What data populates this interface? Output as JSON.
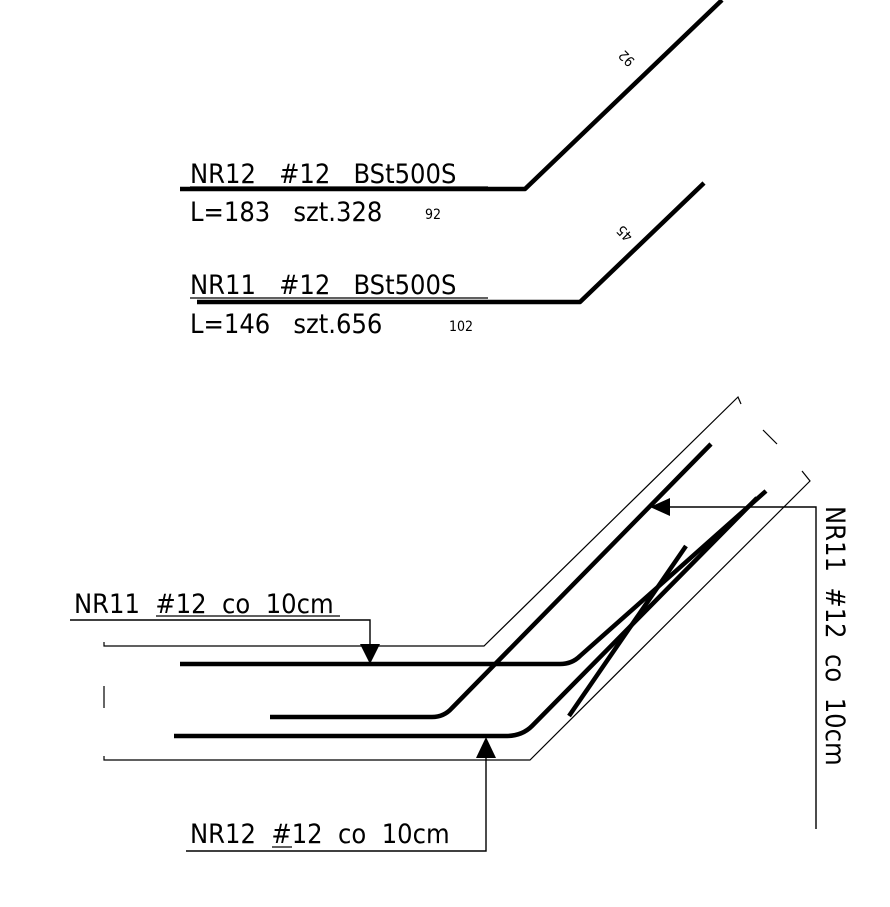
{
  "schedule": {
    "nr12": {
      "mark": "NR12   #12   BSt500S",
      "length_qty": "L=183   szt.328",
      "leg_horizontal": "92",
      "leg_diagonal": "92"
    },
    "nr11": {
      "mark": "NR11   #12   BSt500S",
      "length_qty": "L=146   szt.656",
      "leg_horizontal": "102",
      "leg_diagonal": "45"
    }
  },
  "section": {
    "callout_nr11_left": "NR11  #12  co  10cm",
    "callout_nr12_bottom": "NR12  #12  co  10cm",
    "callout_nr11_right": "NR11  #12  co  10cm"
  }
}
